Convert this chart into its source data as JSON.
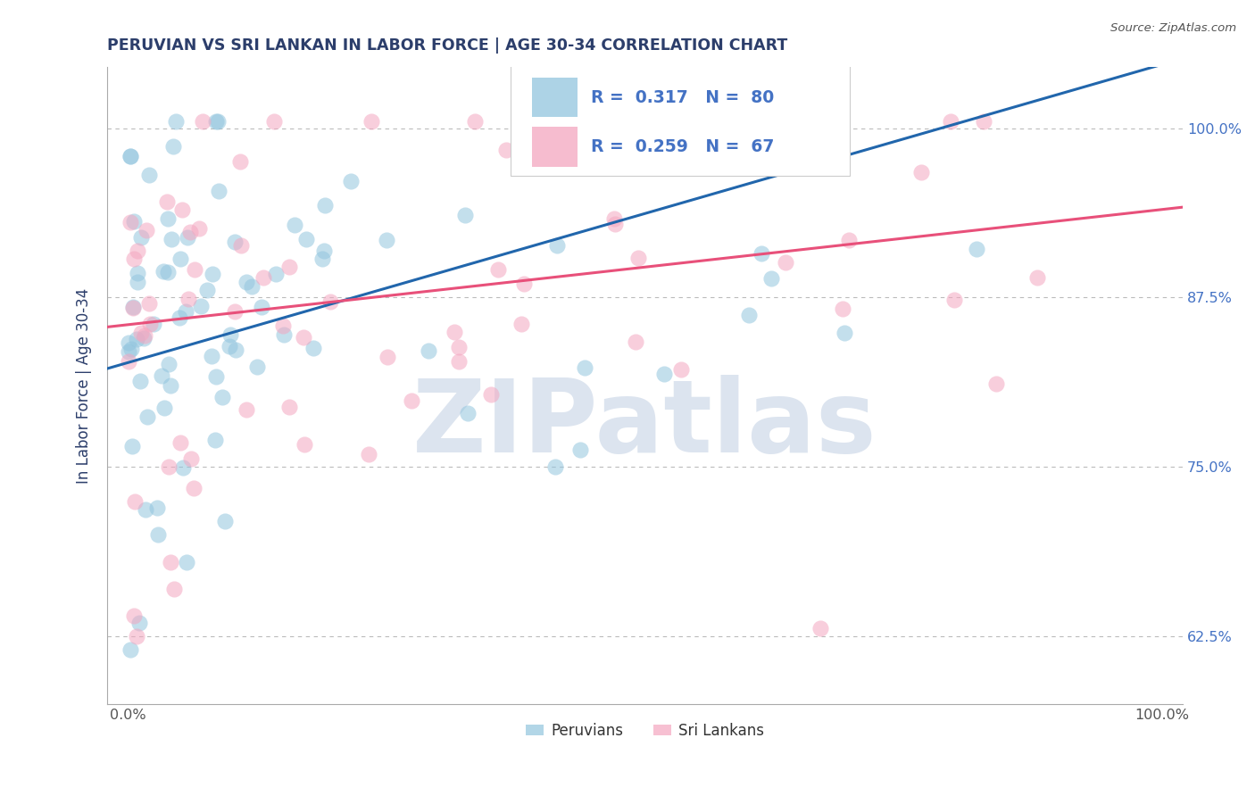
{
  "title": "PERUVIAN VS SRI LANKAN IN LABOR FORCE | AGE 30-34 CORRELATION CHART",
  "source": "Source: ZipAtlas.com",
  "ylabel": "In Labor Force | Age 30-34",
  "blue_label": "Peruvians",
  "pink_label": "Sri Lankans",
  "blue_R": 0.317,
  "blue_N": 80,
  "pink_R": 0.259,
  "pink_N": 67,
  "blue_color": "#92c5de",
  "pink_color": "#f4a6c0",
  "blue_line_color": "#2166ac",
  "pink_line_color": "#e8507a",
  "watermark_color": "#d0d8e8",
  "grid_color": "#bbbbbb",
  "title_color": "#2c3e6b",
  "legend_text_color": "#4472c4",
  "ytick_color": "#4472c4",
  "blue_line_intercept": 0.827,
  "blue_line_slope": 0.22,
  "pink_line_intercept": 0.855,
  "pink_line_slope": 0.085
}
